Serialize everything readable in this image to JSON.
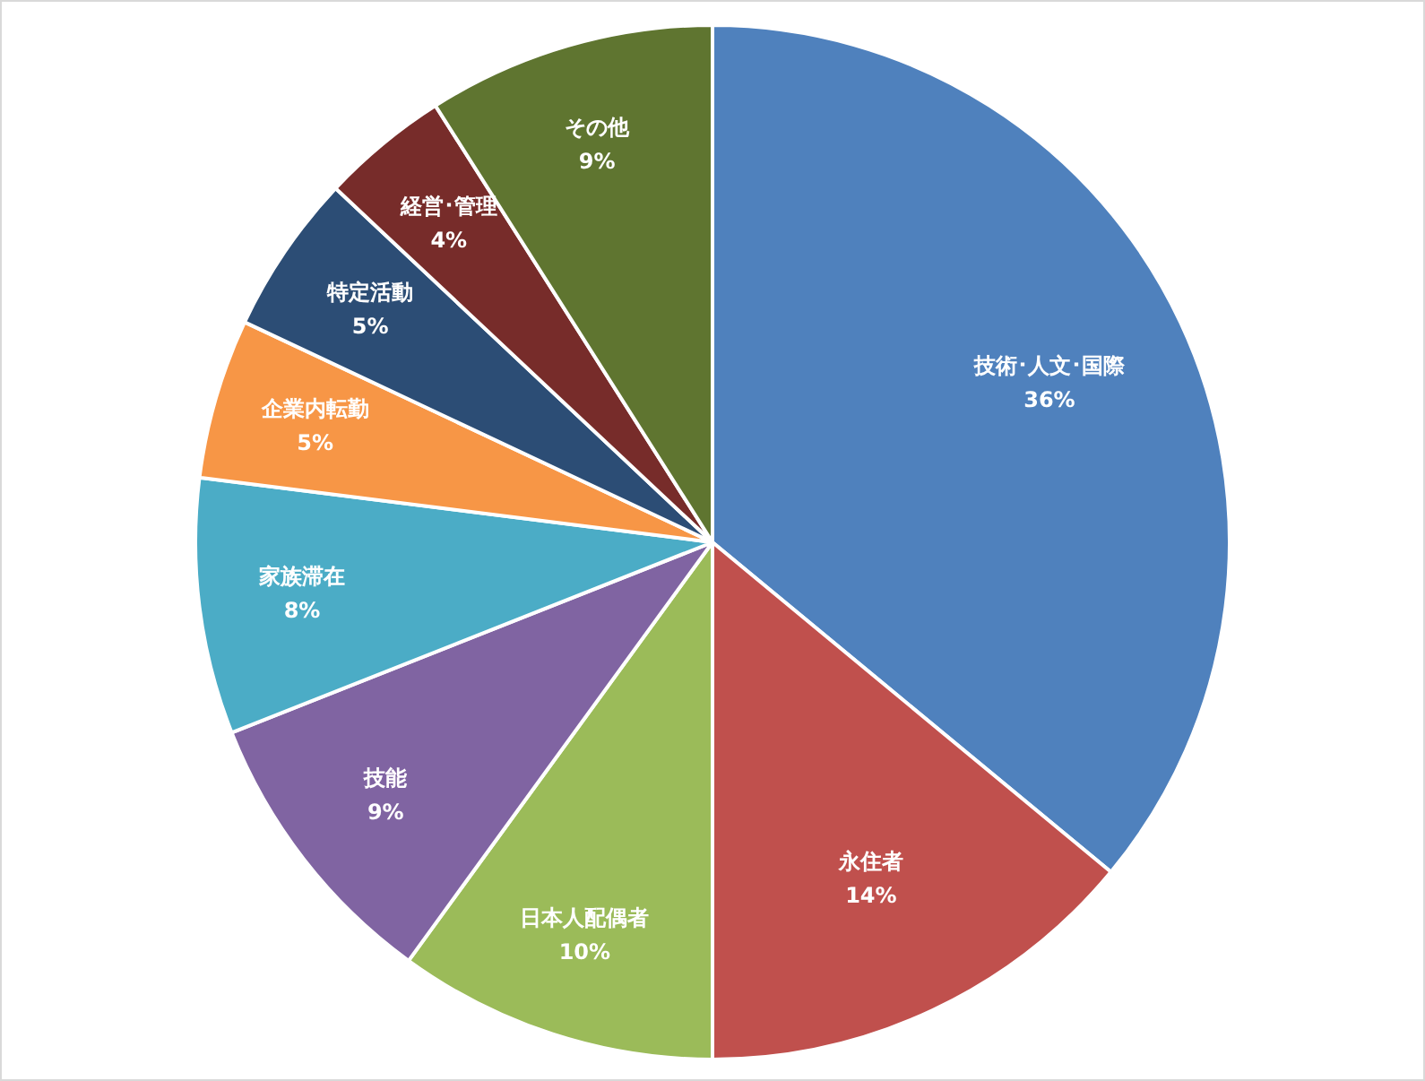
{
  "chart_data": {
    "type": "pie",
    "categories": [
      "技術･人文･国際",
      "永住者",
      "日本人配偶者",
      "技能",
      "家族滞在",
      "企業内転勤",
      "特定活動",
      "経営･管理",
      "その他"
    ],
    "values": [
      36,
      14,
      10,
      9,
      8,
      5,
      5,
      4,
      9
    ],
    "value_labels": [
      "36%",
      "14%",
      "10%",
      "9%",
      "8%",
      "5%",
      "5%",
      "4%",
      "9%"
    ],
    "colors": [
      "#4f81bd",
      "#c0504d",
      "#9bbb59",
      "#8064a2",
      "#4bacc6",
      "#f79646",
      "#2c4d75",
      "#772c2a",
      "#5f7530"
    ],
    "legend": false
  }
}
